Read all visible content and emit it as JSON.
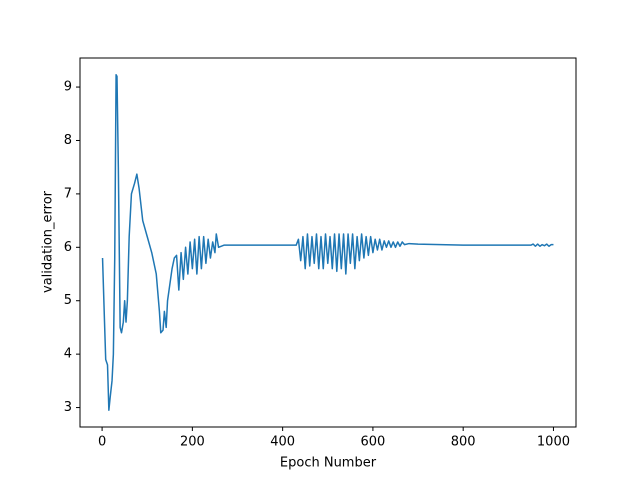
{
  "chart_data": {
    "type": "line",
    "xlabel": "Epoch Number",
    "ylabel": "validation_error",
    "x": [
      1,
      5,
      8,
      12,
      15,
      18,
      22,
      25,
      28,
      31,
      33,
      36,
      40,
      43,
      47,
      50,
      53,
      56,
      60,
      65,
      72,
      77,
      82,
      90,
      100,
      110,
      120,
      127,
      130,
      135,
      138,
      142,
      145,
      150,
      155,
      160,
      165,
      170,
      175,
      180,
      185,
      190,
      195,
      200,
      205,
      210,
      215,
      220,
      225,
      230,
      235,
      240,
      245,
      250,
      253,
      258,
      270,
      430,
      435,
      440,
      445,
      450,
      455,
      460,
      465,
      470,
      475,
      480,
      485,
      490,
      495,
      500,
      505,
      510,
      515,
      520,
      525,
      530,
      535,
      540,
      545,
      550,
      555,
      560,
      565,
      570,
      575,
      580,
      585,
      590,
      595,
      600,
      605,
      610,
      615,
      620,
      625,
      630,
      635,
      640,
      645,
      650,
      655,
      660,
      665,
      670,
      680,
      700,
      800,
      950,
      955,
      960,
      965,
      970,
      975,
      980,
      985,
      990,
      995,
      1000
    ],
    "series": [
      {
        "name": "validation_error",
        "color": "#1f77b4",
        "values": [
          5.8,
          4.7,
          3.9,
          3.8,
          2.95,
          3.2,
          3.5,
          4.0,
          5.8,
          9.23,
          9.2,
          7.5,
          4.5,
          4.4,
          4.6,
          5.0,
          4.6,
          5.0,
          6.2,
          7.0,
          7.2,
          7.37,
          7.1,
          6.5,
          6.2,
          5.9,
          5.5,
          4.8,
          4.4,
          4.45,
          4.8,
          4.5,
          5.0,
          5.3,
          5.6,
          5.8,
          5.85,
          5.2,
          5.9,
          5.4,
          6.0,
          5.5,
          6.1,
          5.6,
          6.15,
          5.5,
          6.2,
          5.6,
          6.2,
          5.7,
          6.15,
          5.8,
          6.1,
          5.9,
          6.25,
          6.0,
          6.04,
          6.04,
          6.15,
          5.75,
          6.2,
          5.6,
          6.25,
          5.65,
          6.2,
          5.7,
          6.25,
          5.6,
          6.2,
          5.6,
          6.25,
          5.7,
          6.2,
          5.6,
          6.25,
          5.55,
          6.25,
          5.6,
          6.25,
          5.5,
          6.25,
          5.7,
          6.25,
          5.6,
          6.2,
          5.75,
          6.25,
          5.8,
          6.2,
          5.85,
          6.2,
          5.9,
          6.15,
          5.95,
          6.15,
          5.95,
          6.12,
          6.0,
          6.12,
          6.0,
          6.1,
          6.0,
          6.1,
          6.02,
          6.1,
          6.05,
          6.07,
          6.06,
          6.04,
          6.04,
          6.06,
          6.02,
          6.06,
          6.02,
          6.05,
          6.03,
          6.06,
          6.02,
          6.05,
          6.05
        ]
      }
    ],
    "xlim": [
      -48.95,
      1049.95
    ],
    "xticks": [
      0,
      200,
      400,
      600,
      800,
      1000
    ],
    "ylim": [
      2.636,
      9.544
    ],
    "yticks": [
      3,
      4,
      5,
      6,
      7,
      8,
      9
    ]
  }
}
